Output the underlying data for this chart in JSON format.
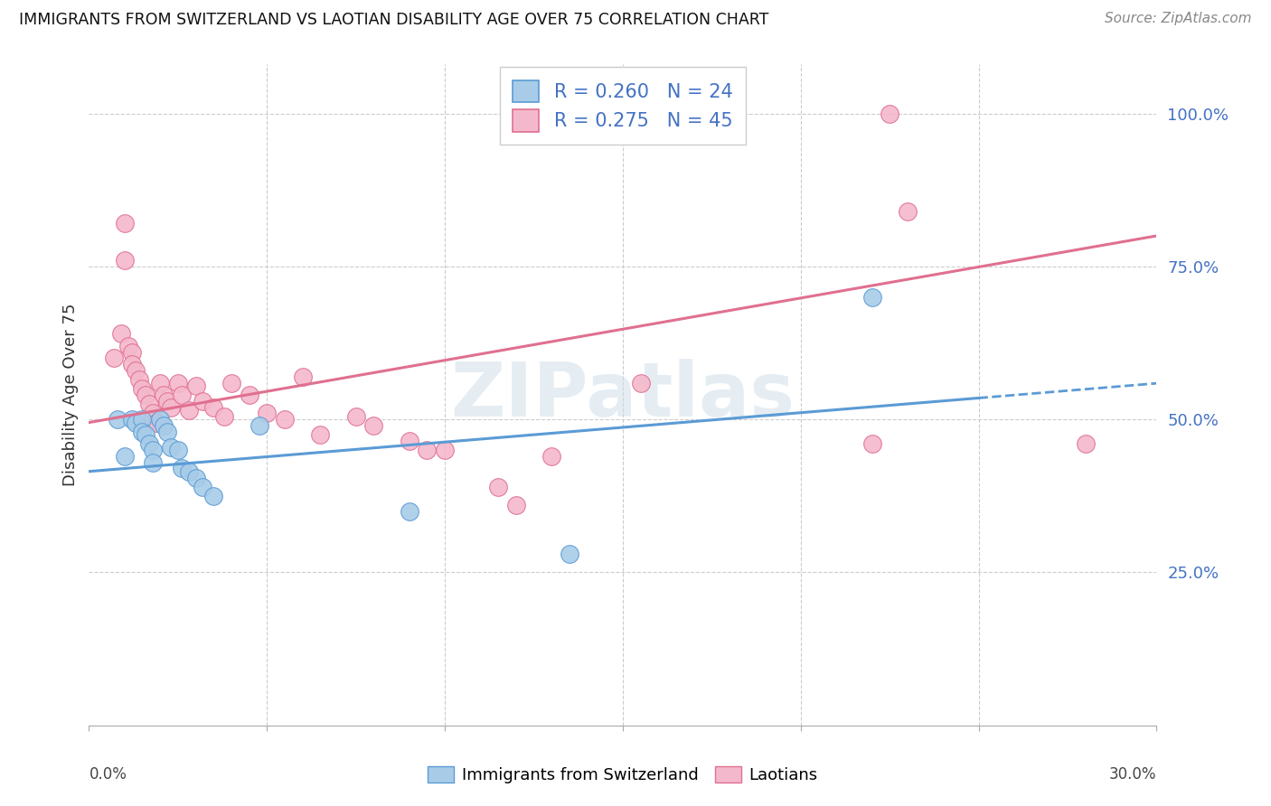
{
  "title": "IMMIGRANTS FROM SWITZERLAND VS LAOTIAN DISABILITY AGE OVER 75 CORRELATION CHART",
  "source": "Source: ZipAtlas.com",
  "ylabel": "Disability Age Over 75",
  "xmin": 0.0,
  "xmax": 0.3,
  "ymin": 0.0,
  "ymax": 1.08,
  "ytick_vals": [
    0.25,
    0.5,
    0.75,
    1.0
  ],
  "ytick_labels": [
    "25.0%",
    "50.0%",
    "75.0%",
    "100.0%"
  ],
  "xtick_vals": [
    0.0,
    0.05,
    0.1,
    0.15,
    0.2,
    0.25,
    0.3
  ],
  "legend_r1": "R = 0.260",
  "legend_n1": "N = 24",
  "legend_r2": "R = 0.275",
  "legend_n2": "N = 45",
  "color_swiss_fill": "#A8CCE8",
  "color_swiss_edge": "#5B9BD5",
  "color_laotian_fill": "#F4B8CC",
  "color_laotian_edge": "#E07090",
  "color_swiss_line": "#5B9BD5",
  "color_laotian_line": "#E07090",
  "watermark": "ZIPatlas",
  "swiss_line_x0": 0.0,
  "swiss_line_y0": 0.415,
  "swiss_line_x1": 0.25,
  "swiss_line_y1": 0.535,
  "swiss_line_dash_x0": 0.25,
  "swiss_line_dash_y0": 0.535,
  "swiss_line_dash_x1": 0.3,
  "swiss_line_dash_y1": 0.559,
  "laotian_line_x0": 0.0,
  "laotian_line_y0": 0.495,
  "laotian_line_x1": 0.3,
  "laotian_line_y1": 0.8,
  "swiss_x": [
    0.008,
    0.01,
    0.012,
    0.013,
    0.015,
    0.015,
    0.016,
    0.017,
    0.018,
    0.018,
    0.02,
    0.021,
    0.022,
    0.023,
    0.025,
    0.026,
    0.028,
    0.03,
    0.032,
    0.035,
    0.048,
    0.09,
    0.135,
    0.22
  ],
  "swiss_y": [
    0.5,
    0.44,
    0.5,
    0.495,
    0.5,
    0.48,
    0.475,
    0.46,
    0.45,
    0.43,
    0.5,
    0.49,
    0.48,
    0.455,
    0.45,
    0.42,
    0.415,
    0.405,
    0.39,
    0.375,
    0.49,
    0.35,
    0.28,
    0.7
  ],
  "laotian_x": [
    0.007,
    0.009,
    0.01,
    0.01,
    0.011,
    0.012,
    0.012,
    0.013,
    0.014,
    0.015,
    0.016,
    0.017,
    0.018,
    0.018,
    0.019,
    0.02,
    0.021,
    0.022,
    0.023,
    0.025,
    0.026,
    0.028,
    0.03,
    0.032,
    0.035,
    0.038,
    0.04,
    0.045,
    0.05,
    0.055,
    0.06,
    0.065,
    0.075,
    0.08,
    0.09,
    0.095,
    0.1,
    0.115,
    0.12,
    0.13,
    0.155,
    0.22,
    0.225,
    0.23,
    0.28
  ],
  "laotian_y": [
    0.6,
    0.64,
    0.76,
    0.82,
    0.62,
    0.61,
    0.59,
    0.58,
    0.565,
    0.55,
    0.54,
    0.525,
    0.51,
    0.5,
    0.495,
    0.56,
    0.54,
    0.53,
    0.52,
    0.56,
    0.54,
    0.515,
    0.555,
    0.53,
    0.52,
    0.505,
    0.56,
    0.54,
    0.51,
    0.5,
    0.57,
    0.475,
    0.505,
    0.49,
    0.465,
    0.45,
    0.45,
    0.39,
    0.36,
    0.44,
    0.56,
    0.46,
    1.0,
    0.84,
    0.46
  ]
}
